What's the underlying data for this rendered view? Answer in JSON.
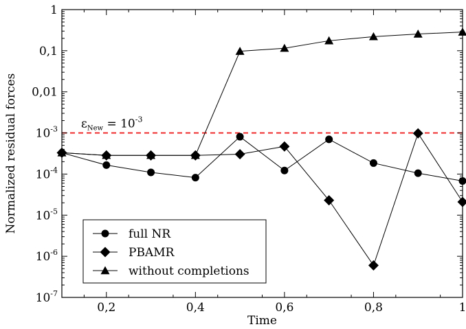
{
  "chart_data": {
    "type": "line",
    "xlabel": "Time",
    "ylabel": "Normalized residual forces",
    "xlim": [
      0.1,
      1.0
    ],
    "ylim": [
      1e-07,
      1
    ],
    "yscale": "log",
    "x": [
      0.1,
      0.2,
      0.3,
      0.4,
      0.5,
      0.6,
      0.7,
      0.8,
      0.9,
      1.0
    ],
    "xticks": [
      {
        "value": 0.2,
        "label": "0,2"
      },
      {
        "value": 0.4,
        "label": "0,4"
      },
      {
        "value": 0.6,
        "label": "0,6"
      },
      {
        "value": 0.8,
        "label": "0,8"
      },
      {
        "value": 1.0,
        "label": "1"
      }
    ],
    "yticks": [
      {
        "value": 1,
        "base": "1",
        "exp": ""
      },
      {
        "value": 0.1,
        "base": "0,1",
        "exp": ""
      },
      {
        "value": 0.01,
        "base": "0,01",
        "exp": ""
      },
      {
        "value": 0.001,
        "base": "10",
        "exp": "-3"
      },
      {
        "value": 0.0001,
        "base": "10",
        "exp": "-4"
      },
      {
        "value": 1e-05,
        "base": "10",
        "exp": "-5"
      },
      {
        "value": 1e-06,
        "base": "10",
        "exp": "-6"
      },
      {
        "value": 1e-07,
        "base": "10",
        "exp": "-7"
      }
    ],
    "series": [
      {
        "name": "full NR",
        "marker": "circle",
        "values": [
          0.00033,
          0.000165,
          0.00011,
          8.2e-05,
          0.00081,
          0.000122,
          0.0007,
          0.000185,
          0.000105,
          6.8e-05
        ]
      },
      {
        "name": "PBAMR",
        "marker": "diamond",
        "values": [
          0.00033,
          0.000285,
          0.000285,
          0.000285,
          0.000305,
          0.00047,
          2.3e-05,
          6e-07,
          0.00098,
          2.1e-05
        ]
      },
      {
        "name": "without completions",
        "marker": "triangle",
        "values": [
          0.00033,
          0.000285,
          0.000285,
          0.000285,
          0.097,
          0.115,
          0.175,
          0.22,
          0.255,
          0.285
        ]
      }
    ],
    "threshold": {
      "value": 0.001,
      "color": "#ee1c1c",
      "label_base": "ε",
      "label_sub": "New",
      "label_mid": " = 10",
      "label_exp": "-3"
    },
    "legend_position": "bottom-left",
    "grid": false
  }
}
